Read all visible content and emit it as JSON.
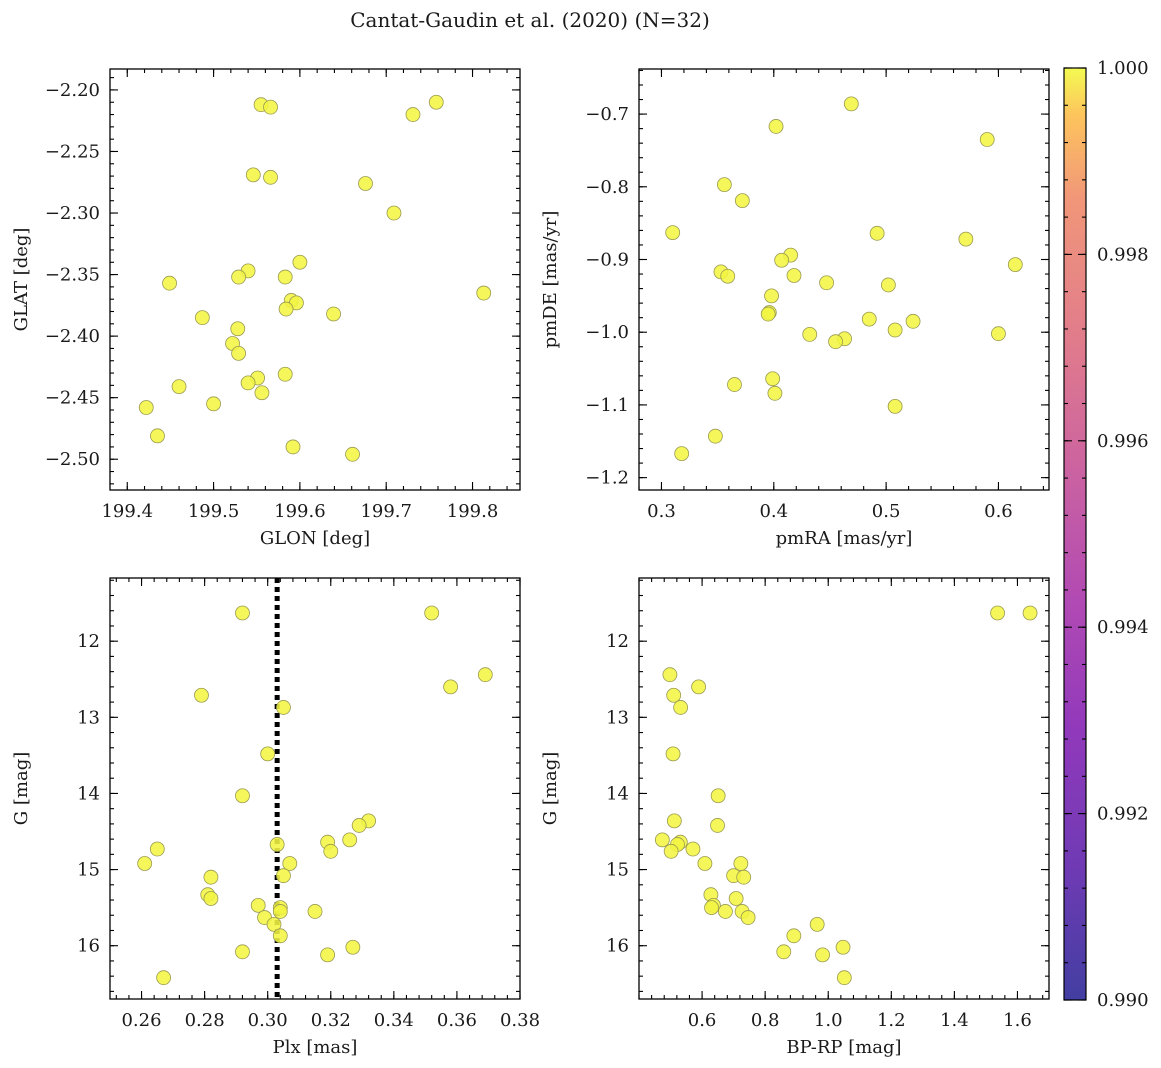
{
  "figure": {
    "title": "Cantat-Gaudin et al. (2020) (N=32)",
    "point_color": "#f0f535",
    "colormap": "plasma",
    "colorbar": {
      "ticks": [
        "1.000",
        "0.998",
        "0.996",
        "0.994",
        "0.992",
        "0.990"
      ],
      "vmin": 0.99,
      "vmax": 1.0
    }
  },
  "chart_data": [
    {
      "type": "scatter",
      "xlabel": "GLON [deg]",
      "ylabel": "GLAT [deg]",
      "xlim": [
        199.38,
        199.855
      ],
      "ylim": [
        -2.525,
        -2.183
      ],
      "invert_y": false,
      "xticks": [
        199.4,
        199.5,
        199.6,
        199.7,
        199.8
      ],
      "xtick_labels": [
        "199.4",
        "199.5",
        "199.6",
        "199.7",
        "199.8"
      ],
      "yticks": [
        -2.2,
        -2.25,
        -2.3,
        -2.35,
        -2.4,
        -2.45,
        -2.5
      ],
      "ytick_labels": [
        "−2.20",
        "−2.25",
        "−2.30",
        "−2.35",
        "−2.40",
        "−2.45",
        "−2.50"
      ],
      "points": [
        [
          199.555,
          -2.212
        ],
        [
          199.566,
          -2.214
        ],
        [
          199.758,
          -2.21
        ],
        [
          199.731,
          -2.22
        ],
        [
          199.546,
          -2.269
        ],
        [
          199.566,
          -2.271
        ],
        [
          199.676,
          -2.276
        ],
        [
          199.709,
          -2.3
        ],
        [
          199.6,
          -2.34
        ],
        [
          199.54,
          -2.347
        ],
        [
          199.529,
          -2.352
        ],
        [
          199.583,
          -2.352
        ],
        [
          199.449,
          -2.357
        ],
        [
          199.813,
          -2.365
        ],
        [
          199.59,
          -2.371
        ],
        [
          199.596,
          -2.373
        ],
        [
          199.584,
          -2.378
        ],
        [
          199.639,
          -2.382
        ],
        [
          199.487,
          -2.385
        ],
        [
          199.528,
          -2.394
        ],
        [
          199.522,
          -2.406
        ],
        [
          199.529,
          -2.414
        ],
        [
          199.583,
          -2.431
        ],
        [
          199.551,
          -2.434
        ],
        [
          199.54,
          -2.438
        ],
        [
          199.46,
          -2.441
        ],
        [
          199.556,
          -2.446
        ],
        [
          199.5,
          -2.455
        ],
        [
          199.422,
          -2.458
        ],
        [
          199.435,
          -2.481
        ],
        [
          199.592,
          -2.49
        ],
        [
          199.661,
          -2.496
        ]
      ]
    },
    {
      "type": "scatter",
      "xlabel": "pmRA [mas/yr]",
      "ylabel": "pmDE [mas/yr]",
      "xlim": [
        0.28,
        0.645
      ],
      "ylim": [
        -1.217,
        -0.638
      ],
      "invert_y": false,
      "xticks": [
        0.3,
        0.4,
        0.5,
        0.6
      ],
      "xtick_labels": [
        "0.3",
        "0.4",
        "0.5",
        "0.6"
      ],
      "yticks": [
        -0.7,
        -0.8,
        -0.9,
        -1.0,
        -1.1,
        -1.2
      ],
      "ytick_labels": [
        "−0.7",
        "−0.8",
        "−0.9",
        "−1.0",
        "−1.1",
        "−1.2"
      ],
      "points": [
        [
          0.469,
          -0.686
        ],
        [
          0.402,
          -0.717
        ],
        [
          0.59,
          -0.735
        ],
        [
          0.356,
          -0.797
        ],
        [
          0.372,
          -0.819
        ],
        [
          0.31,
          -0.863
        ],
        [
          0.492,
          -0.864
        ],
        [
          0.571,
          -0.872
        ],
        [
          0.415,
          -0.894
        ],
        [
          0.407,
          -0.901
        ],
        [
          0.615,
          -0.907
        ],
        [
          0.353,
          -0.917
        ],
        [
          0.359,
          -0.923
        ],
        [
          0.418,
          -0.922
        ],
        [
          0.447,
          -0.932
        ],
        [
          0.502,
          -0.935
        ],
        [
          0.398,
          -0.95
        ],
        [
          0.396,
          -0.973
        ],
        [
          0.395,
          -0.975
        ],
        [
          0.485,
          -0.982
        ],
        [
          0.524,
          -0.985
        ],
        [
          0.508,
          -0.997
        ],
        [
          0.6,
          -1.002
        ],
        [
          0.432,
          -1.003
        ],
        [
          0.463,
          -1.009
        ],
        [
          0.455,
          -1.013
        ],
        [
          0.399,
          -1.064
        ],
        [
          0.365,
          -1.072
        ],
        [
          0.401,
          -1.084
        ],
        [
          0.508,
          -1.102
        ],
        [
          0.348,
          -1.143
        ],
        [
          0.318,
          -1.167
        ]
      ]
    },
    {
      "type": "scatter",
      "xlabel": "Plx [mas]",
      "ylabel": "G [mag]",
      "xlim": [
        0.25,
        0.38
      ],
      "ylim": [
        16.7,
        11.17
      ],
      "invert_y": true,
      "xticks": [
        0.26,
        0.28,
        0.3,
        0.32,
        0.34,
        0.36,
        0.38
      ],
      "xtick_labels": [
        "0.26",
        "0.28",
        "0.30",
        "0.32",
        "0.34",
        "0.36",
        "0.38"
      ],
      "yticks": [
        12,
        13,
        14,
        15,
        16
      ],
      "ytick_labels": [
        "12",
        "13",
        "14",
        "15",
        "16"
      ],
      "vline": {
        "x": 0.303,
        "style": "dotted"
      },
      "points": [
        [
          0.292,
          11.63
        ],
        [
          0.352,
          11.63
        ],
        [
          0.369,
          12.44
        ],
        [
          0.358,
          12.6
        ],
        [
          0.279,
          12.71
        ],
        [
          0.305,
          12.87
        ],
        [
          0.3,
          13.48
        ],
        [
          0.292,
          14.03
        ],
        [
          0.332,
          14.36
        ],
        [
          0.329,
          14.42
        ],
        [
          0.326,
          14.61
        ],
        [
          0.319,
          14.64
        ],
        [
          0.303,
          14.67
        ],
        [
          0.265,
          14.73
        ],
        [
          0.32,
          14.76
        ],
        [
          0.261,
          14.92
        ],
        [
          0.307,
          14.92
        ],
        [
          0.305,
          15.08
        ],
        [
          0.282,
          15.1
        ],
        [
          0.281,
          15.33
        ],
        [
          0.282,
          15.38
        ],
        [
          0.297,
          15.47
        ],
        [
          0.304,
          15.5
        ],
        [
          0.304,
          15.55
        ],
        [
          0.315,
          15.55
        ],
        [
          0.299,
          15.63
        ],
        [
          0.302,
          15.72
        ],
        [
          0.304,
          15.87
        ],
        [
          0.327,
          16.02
        ],
        [
          0.292,
          16.08
        ],
        [
          0.319,
          16.12
        ],
        [
          0.267,
          16.42
        ]
      ]
    },
    {
      "type": "scatter",
      "xlabel": "BP-RP [mag]",
      "ylabel": "G [mag]",
      "xlim": [
        0.4,
        1.7
      ],
      "ylim": [
        16.7,
        11.17
      ],
      "invert_y": true,
      "xticks": [
        0.6,
        0.8,
        1.0,
        1.2,
        1.4,
        1.6
      ],
      "xtick_labels": [
        "0.6",
        "0.8",
        "1.0",
        "1.2",
        "1.4",
        "1.6"
      ],
      "yticks": [
        12,
        13,
        14,
        15,
        16
      ],
      "ytick_labels": [
        "12",
        "13",
        "14",
        "15",
        "16"
      ],
      "points": [
        [
          1.537,
          11.63
        ],
        [
          1.64,
          11.63
        ],
        [
          0.498,
          12.44
        ],
        [
          0.589,
          12.6
        ],
        [
          0.51,
          12.71
        ],
        [
          0.532,
          12.87
        ],
        [
          0.508,
          13.48
        ],
        [
          0.651,
          14.03
        ],
        [
          0.512,
          14.36
        ],
        [
          0.649,
          14.42
        ],
        [
          0.474,
          14.61
        ],
        [
          0.531,
          14.64
        ],
        [
          0.522,
          14.67
        ],
        [
          0.571,
          14.73
        ],
        [
          0.502,
          14.76
        ],
        [
          0.609,
          14.92
        ],
        [
          0.723,
          14.92
        ],
        [
          0.7,
          15.08
        ],
        [
          0.732,
          15.1
        ],
        [
          0.628,
          15.33
        ],
        [
          0.708,
          15.38
        ],
        [
          0.636,
          15.47
        ],
        [
          0.63,
          15.5
        ],
        [
          0.674,
          15.55
        ],
        [
          0.727,
          15.55
        ],
        [
          0.746,
          15.63
        ],
        [
          0.965,
          15.72
        ],
        [
          0.891,
          15.87
        ],
        [
          1.047,
          16.02
        ],
        [
          0.859,
          16.08
        ],
        [
          0.982,
          16.12
        ],
        [
          1.051,
          16.42
        ]
      ]
    }
  ]
}
